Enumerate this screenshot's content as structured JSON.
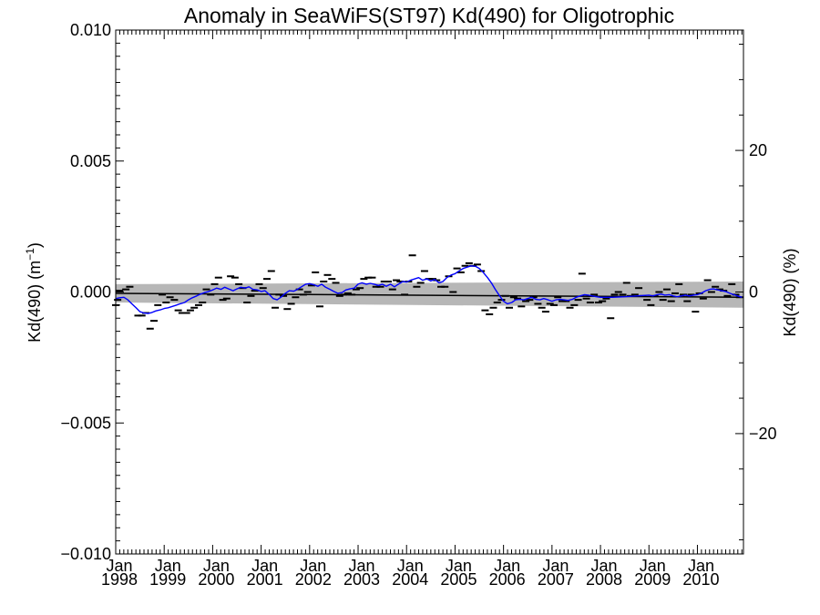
{
  "chart_data": {
    "type": "line",
    "title": "Anomaly in SeaWiFS(ST97) Kd(490) for Oligotrophic",
    "ylabel": "Kd(490) (m⁻¹)",
    "y2label": "Kd(490) (%)",
    "ylim": [
      -0.01,
      0.01
    ],
    "y2lim": [
      -37,
      37
    ],
    "xlim": [
      1998.0,
      2010.95
    ],
    "yticks": [
      {
        "value": -0.01,
        "label": "−0.010"
      },
      {
        "value": -0.005,
        "label": "−0.005"
      },
      {
        "value": 0.0,
        "label": "0.000"
      },
      {
        "value": 0.005,
        "label": "0.005"
      },
      {
        "value": 0.01,
        "label": "0.010"
      }
    ],
    "y2ticks": [
      {
        "value": -20,
        "label": "−20"
      },
      {
        "value": 0,
        "label": "0"
      },
      {
        "value": 20,
        "label": "20"
      }
    ],
    "xticks": [
      {
        "value": 1998.0,
        "month": "Jan",
        "year": "1998"
      },
      {
        "value": 1999.0,
        "month": "Jan",
        "year": "1999"
      },
      {
        "value": 2000.0,
        "month": "Jan",
        "year": "2000"
      },
      {
        "value": 2001.0,
        "month": "Jan",
        "year": "2001"
      },
      {
        "value": 2002.0,
        "month": "Jan",
        "year": "2002"
      },
      {
        "value": 2003.0,
        "month": "Jan",
        "year": "2003"
      },
      {
        "value": 2004.0,
        "month": "Jan",
        "year": "2004"
      },
      {
        "value": 2005.0,
        "month": "Jan",
        "year": "2005"
      },
      {
        "value": 2006.0,
        "month": "Jan",
        "year": "2006"
      },
      {
        "value": 2007.0,
        "month": "Jan",
        "year": "2007"
      },
      {
        "value": 2008.0,
        "month": "Jan",
        "year": "2008"
      },
      {
        "value": 2009.0,
        "month": "Jan",
        "year": "2009"
      },
      {
        "value": 2010.0,
        "month": "Jan",
        "year": "2010"
      }
    ],
    "grid": false,
    "band": {
      "start": [
        1998.0,
        -5e-05,
        0.0003,
        -0.0004
      ],
      "end": [
        2010.95,
        -0.0002,
        0.0004,
        -0.0006
      ]
    },
    "trend_line": {
      "x": [
        1998.0,
        2010.95
      ],
      "y": [
        -5e-05,
        -0.0002
      ]
    },
    "series": [
      {
        "style": "line",
        "color": "#0000ff",
        "x": [
          1998.0,
          1998.08,
          1998.17,
          1998.25,
          1998.33,
          1998.42,
          1998.5,
          1998.58,
          1998.67,
          1998.75,
          1998.83,
          1998.92,
          1999.0,
          1999.08,
          1999.17,
          1999.25,
          1999.33,
          1999.42,
          1999.5,
          1999.58,
          1999.67,
          1999.75,
          1999.83,
          1999.92,
          2000.0,
          2000.08,
          2000.17,
          2000.25,
          2000.33,
          2000.42,
          2000.5,
          2000.58,
          2000.67,
          2000.75,
          2000.83,
          2000.92,
          2001.0,
          2001.08,
          2001.17,
          2001.25,
          2001.33,
          2001.42,
          2001.5,
          2001.58,
          2001.67,
          2001.75,
          2001.83,
          2001.92,
          2002.0,
          2002.08,
          2002.17,
          2002.25,
          2002.33,
          2002.42,
          2002.5,
          2002.58,
          2002.67,
          2002.75,
          2002.83,
          2002.92,
          2003.0,
          2003.08,
          2003.17,
          2003.25,
          2003.33,
          2003.42,
          2003.5,
          2003.58,
          2003.67,
          2003.75,
          2003.83,
          2003.92,
          2004.0,
          2004.08,
          2004.17,
          2004.25,
          2004.33,
          2004.42,
          2004.5,
          2004.58,
          2004.67,
          2004.75,
          2004.83,
          2004.92,
          2005.0,
          2005.08,
          2005.17,
          2005.25,
          2005.33,
          2005.42,
          2005.5,
          2005.58,
          2005.67,
          2005.75,
          2005.83,
          2005.92,
          2006.0,
          2006.08,
          2006.17,
          2006.25,
          2006.33,
          2006.42,
          2006.5,
          2006.58,
          2006.67,
          2006.75,
          2006.83,
          2006.92,
          2007.0,
          2007.08,
          2007.17,
          2007.25,
          2007.33,
          2007.42,
          2007.5,
          2007.58,
          2007.67,
          2007.75,
          2007.83,
          2007.92,
          2008.0,
          2008.25,
          2008.5,
          2008.75,
          2009.0,
          2009.08,
          2009.17,
          2009.25,
          2009.33,
          2009.42,
          2009.5,
          2009.58,
          2009.67,
          2009.75,
          2009.83,
          2009.92,
          2010.0,
          2010.08,
          2010.17,
          2010.25,
          2010.33,
          2010.42,
          2010.5,
          2010.58,
          2010.67,
          2010.75,
          2010.83,
          2010.92
        ],
        "y": [
          -0.00025,
          -0.00022,
          -0.0002,
          -0.0003,
          -0.00045,
          -0.0006,
          -0.00075,
          -0.0008,
          -0.00082,
          -0.00078,
          -0.00072,
          -0.00068,
          -0.00063,
          -0.0006,
          -0.00055,
          -0.0005,
          -0.00045,
          -0.0004,
          -0.0003,
          -0.00022,
          -0.00015,
          -8e-05,
          -2e-05,
          2e-05,
          8e-05,
          0.00015,
          0.0001,
          0.00018,
          0.00012,
          5e-05,
          0.00012,
          0.00018,
          0.00015,
          0.0002,
          0.0001,
          8e-05,
          2e-05,
          5e-05,
          -0.0001,
          -0.00025,
          -0.0003,
          -0.00018,
          -5e-05,
          5e-05,
          3e-05,
          0.0001,
          0.0002,
          0.0003,
          0.00032,
          0.00028,
          0.00022,
          0.0003,
          0.00018,
          0.0001,
          2e-05,
          -5e-05,
          -2e-05,
          8e-05,
          0.00012,
          0.00015,
          0.0003,
          0.00035,
          0.0003,
          0.00033,
          0.0003,
          0.00025,
          0.0003,
          0.00022,
          0.0003,
          0.0002,
          0.0003,
          0.0004,
          0.00038,
          0.00045,
          0.0005,
          0.00055,
          0.00045,
          0.0005,
          0.00042,
          0.00048,
          0.00035,
          0.0004,
          0.00055,
          0.00065,
          0.0007,
          0.0008,
          0.0009,
          0.00095,
          0.001,
          0.00098,
          0.0009,
          0.00075,
          0.00055,
          0.00035,
          0.0001,
          -0.00015,
          -0.00035,
          -0.00045,
          -0.0004,
          -0.0003,
          -0.00028,
          -0.0003,
          -0.00025,
          -0.0002,
          -0.00028,
          -0.0003,
          -0.00025,
          -0.0003,
          -0.00035,
          -0.0003,
          -0.00028,
          -0.0003,
          -0.00032,
          -0.00028,
          -0.0002,
          -0.00015,
          -0.0001,
          -0.00012,
          -0.00015,
          -0.00018,
          -0.0002,
          -0.0002,
          -0.00018,
          -0.00015,
          -0.00012,
          -0.00015,
          -0.0001,
          -8e-05,
          -0.00012,
          -0.0001,
          -0.00015,
          -0.00018,
          -0.00015,
          -0.00012,
          -0.00015,
          -0.00012,
          -0.0001,
          -5e-05,
          5e-05,
          0.0001,
          0.00012,
          8e-05,
          5e-05,
          2e-05,
          -5e-05,
          -0.0001,
          -0.00015,
          -0.0002
        ]
      },
      {
        "style": "dash",
        "color": "#000000",
        "x": [
          1998.0,
          1998.04,
          1998.08,
          1998.21,
          1998.29,
          1998.46,
          1998.54,
          1998.62,
          1998.71,
          1998.79,
          1998.87,
          1998.96,
          1999.04,
          1999.12,
          1999.21,
          1999.29,
          1999.37,
          1999.46,
          1999.54,
          1999.62,
          1999.71,
          1999.79,
          1999.87,
          1999.96,
          2000.04,
          2000.12,
          2000.21,
          2000.29,
          2000.37,
          2000.46,
          2000.54,
          2000.62,
          2000.71,
          2000.79,
          2000.87,
          2000.96,
          2001.04,
          2001.12,
          2001.21,
          2001.29,
          2001.37,
          2001.46,
          2001.54,
          2001.62,
          2001.71,
          2001.79,
          2001.87,
          2001.96,
          2002.04,
          2002.12,
          2002.21,
          2002.29,
          2002.37,
          2002.46,
          2002.54,
          2002.62,
          2002.71,
          2002.79,
          2002.87,
          2002.96,
          2003.04,
          2003.12,
          2003.21,
          2003.29,
          2003.37,
          2003.46,
          2003.54,
          2003.62,
          2003.71,
          2003.79,
          2003.87,
          2003.96,
          2004.04,
          2004.12,
          2004.21,
          2004.29,
          2004.37,
          2004.46,
          2004.54,
          2004.62,
          2004.71,
          2004.79,
          2004.87,
          2004.96,
          2005.04,
          2005.12,
          2005.21,
          2005.29,
          2005.37,
          2005.46,
          2005.54,
          2005.62,
          2005.71,
          2005.79,
          2005.87,
          2005.96,
          2006.04,
          2006.12,
          2006.21,
          2006.29,
          2006.37,
          2006.46,
          2006.54,
          2006.62,
          2006.71,
          2006.79,
          2006.87,
          2006.96,
          2007.04,
          2007.12,
          2007.21,
          2007.29,
          2007.37,
          2007.46,
          2007.54,
          2007.62,
          2007.71,
          2007.79,
          2007.87,
          2007.96,
          2008.04,
          2008.12,
          2008.21,
          2008.29,
          2008.37,
          2008.46,
          2008.54,
          2008.62,
          2008.71,
          2008.79,
          2008.87,
          2008.96,
          2009.04,
          2009.12,
          2009.21,
          2009.29,
          2009.37,
          2009.46,
          2009.54,
          2009.62,
          2009.71,
          2009.79,
          2009.87,
          2009.96,
          2010.04,
          2010.12,
          2010.21,
          2010.29,
          2010.37,
          2010.46,
          2010.54,
          2010.62,
          2010.71,
          2010.79,
          2010.87
        ],
        "y": [
          -0.0005,
          -0.0003,
          5e-05,
          0.0001,
          0.0002,
          -0.0009,
          -0.0009,
          -0.0008,
          -0.0014,
          -0.0011,
          -0.0005,
          -0.0001,
          -0.0004,
          -0.0002,
          -0.0003,
          -0.0007,
          -0.0008,
          -0.0008,
          -0.0007,
          -0.0006,
          -0.0005,
          -0.0004,
          0.0001,
          -0.0001,
          0.0003,
          0.00055,
          -0.0003,
          -0.00025,
          0.0006,
          0.00055,
          0.0003,
          0.00015,
          -0.0004,
          -0.00015,
          5e-05,
          0.0003,
          0.00015,
          0.0005,
          0.0008,
          -0.0006,
          -0.0001,
          -0.00015,
          -0.00065,
          -0.00045,
          -0.0002,
          0.0001,
          -0.0001,
          0.0,
          0.00025,
          0.00075,
          -0.00055,
          0.0004,
          0.00065,
          0.0005,
          0.00035,
          -0.00015,
          -0.0001,
          -5e-05,
          -0.0001,
          0.0001,
          0.00015,
          0.0005,
          0.00055,
          0.00055,
          0.0002,
          0.0002,
          0.0004,
          0.0004,
          0.0001,
          0.00045,
          0.0004,
          -0.0001,
          0.0004,
          0.0014,
          0.0002,
          0.00035,
          0.0008,
          0.0005,
          0.0005,
          0.00045,
          0.0002,
          0.0002,
          0.0006,
          0.0,
          0.0009,
          0.00075,
          0.001,
          0.0011,
          0.001,
          0.00105,
          0.0008,
          -0.0007,
          -0.00085,
          -0.0006,
          -0.0004,
          -0.0003,
          -0.00015,
          -0.0006,
          -0.0002,
          -0.00025,
          -0.00055,
          -0.00035,
          -0.0003,
          -0.0002,
          -0.00045,
          -0.0006,
          -0.00075,
          -0.00045,
          -0.0005,
          -0.0002,
          -0.00035,
          -0.00035,
          -0.0006,
          -0.0005,
          -0.0003,
          0.0007,
          -0.00025,
          -0.0004,
          -0.0001,
          -0.0004,
          -0.00035,
          -0.00025,
          -0.001,
          -0.0001,
          0.0,
          -0.0001,
          0.00035,
          -0.00015,
          -0.0001,
          0.00015,
          -0.00015,
          -0.0003,
          -0.0005,
          -0.00015,
          0.0,
          -0.0003,
          0.0001,
          -0.00035,
          -5e-05,
          0.0003,
          -0.0001,
          -0.00035,
          -0.0001,
          -0.00075,
          -5e-05,
          -0.00025,
          0.00045,
          0.0,
          0.0002,
          0.0001,
          5e-05,
          -0.00015,
          0.0003,
          -0.0001,
          -0.0002
        ]
      }
    ]
  }
}
